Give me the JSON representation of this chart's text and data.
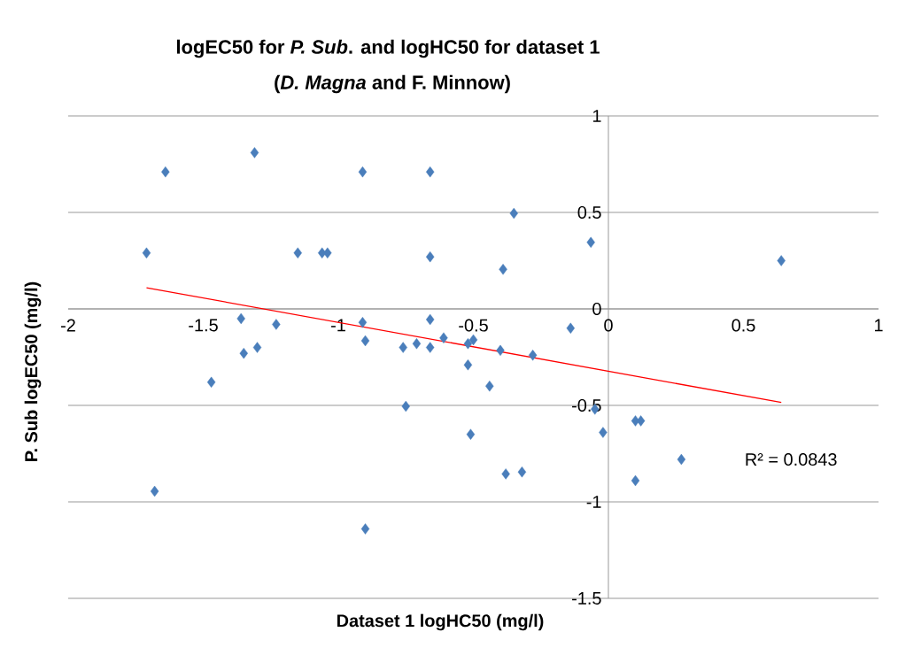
{
  "chart_data": {
    "type": "scatter",
    "title": "logEC50 for *P. Sub*. and logHC50 for dataset 1",
    "subtitle": "(*D. Magna* and F. Minnow)",
    "xlabel": "Dataset 1 logHC50 (mg/l)",
    "ylabel": "P. Sub logEC50 (mg/l)",
    "annotations": [
      "R² = 0.0843"
    ],
    "series": [
      {
        "color": "#4a7ebb",
        "marker": "diamond",
        "x": [
          -1.71,
          -1.64,
          -1.68,
          -1.31,
          -1.36,
          -1.35,
          -1.3,
          -1.47,
          -1.23,
          -1.15,
          -1.06,
          -1.04,
          -0.91,
          -0.91,
          -0.9,
          -0.66,
          -0.66,
          -0.66,
          -0.66,
          -0.76,
          -0.71,
          -0.75,
          -0.61,
          -0.52,
          -0.5,
          -0.52,
          -0.51,
          -0.44,
          -0.35,
          -0.39,
          -0.4,
          -0.38,
          -0.32,
          -0.28,
          -0.14,
          -0.065,
          -0.05,
          -0.02,
          0.1,
          0.12,
          0.1,
          0.27,
          0.64,
          -0.9
        ],
        "values": [
          0.29,
          0.71,
          -0.945,
          0.81,
          -0.05,
          -0.23,
          -0.2,
          -0.38,
          -0.08,
          0.29,
          0.29,
          0.29,
          0.71,
          -0.07,
          -0.165,
          0.71,
          0.27,
          -0.055,
          -0.2,
          -0.2,
          -0.18,
          -0.505,
          -0.15,
          -0.18,
          -0.16,
          -0.29,
          -0.65,
          -0.4,
          0.495,
          0.205,
          -0.215,
          -0.855,
          -0.845,
          -0.24,
          -0.1,
          0.345,
          -0.52,
          -0.64,
          -0.58,
          -0.58,
          -0.89,
          -0.78,
          0.25,
          -1.14
        ]
      },
      {
        "type": "line",
        "color": "#ff0000",
        "marker": "none",
        "x": [
          -1.71,
          0.64
        ],
        "values": [
          0.11,
          -0.485
        ]
      }
    ],
    "xlim": [
      -2,
      1
    ],
    "ylim": [
      -1.5,
      1
    ],
    "xticks": [
      -2,
      -1.5,
      -1,
      -0.5,
      0,
      0.5,
      1
    ],
    "yticks": [
      -1.5,
      -1,
      -0.5,
      0,
      0.5,
      1
    ],
    "grid": "y"
  }
}
